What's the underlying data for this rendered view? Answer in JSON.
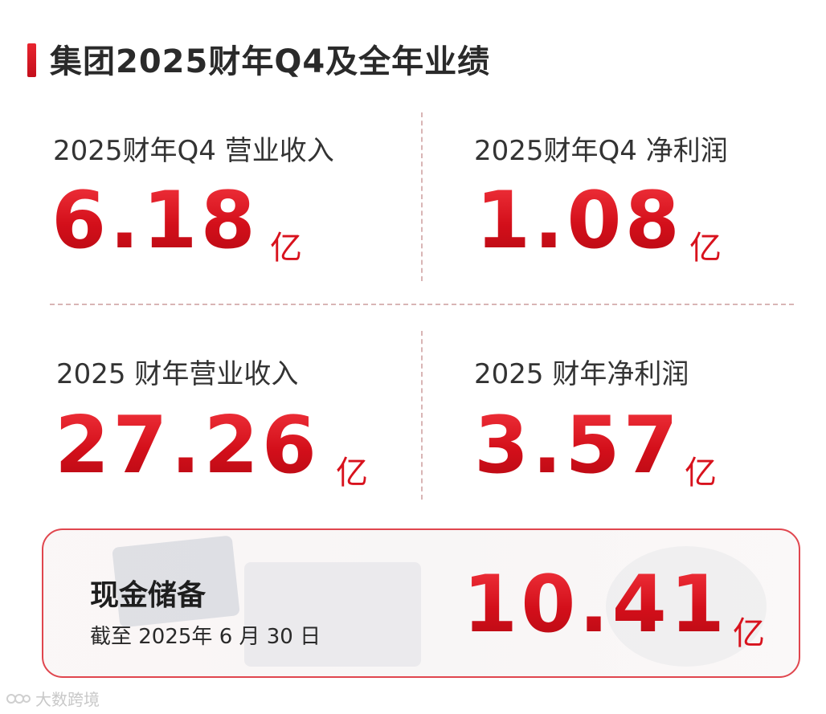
{
  "header": {
    "title": "集团2025财年Q4及全年业绩"
  },
  "metrics": [
    {
      "label": "2025财年Q4 营业收入",
      "value": "6.18",
      "unit": "亿"
    },
    {
      "label": "2025财年Q4 净利润",
      "value": "1.08",
      "unit": "亿"
    },
    {
      "label": "2025 财年营业收入",
      "value": "27.26",
      "unit": "亿"
    },
    {
      "label": "2025 财年净利润",
      "value": "3.57",
      "unit": "亿"
    }
  ],
  "cash": {
    "title": "现金储备",
    "date": "截至 2025年 6 月 30 日",
    "value": "10.41",
    "unit": "亿"
  },
  "watermark": {
    "text": "大数跨境"
  },
  "colors": {
    "accent": "#d8121d",
    "divider": "#d9b5b5",
    "border": "#e0464e"
  }
}
